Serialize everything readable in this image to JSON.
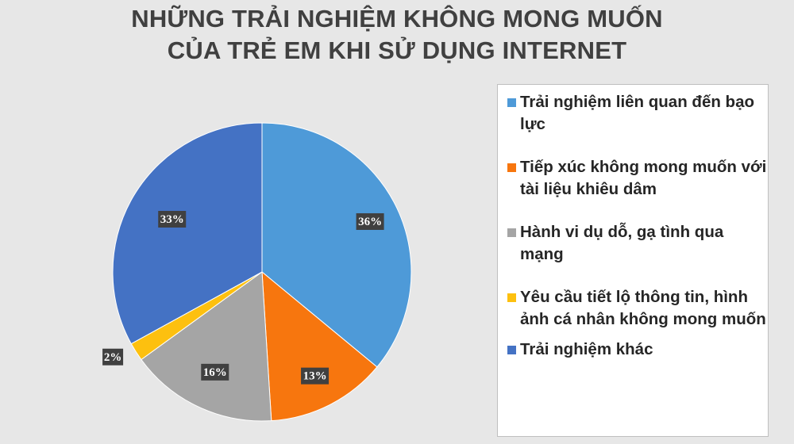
{
  "chart_data": {
    "type": "pie",
    "title_lines": [
      "NHỮNG TRẢI NGHIỆM KHÔNG MONG MUỐN",
      "CỦA TRẺ EM KHI SỬ DỤNG INTERNET"
    ],
    "legend_position": "right",
    "slices": [
      {
        "label": "Trải nghiệm liên quan đến bạo lực",
        "value": 36,
        "value_label": "36%",
        "color": "#4e9ad8"
      },
      {
        "label": "Tiếp xúc không mong muốn với tài liệu khiêu dâm",
        "value": 13,
        "value_label": "13%",
        "color": "#f7760e"
      },
      {
        "label": "Hành vi dụ dỗ, gạ tình qua mạng",
        "value": 16,
        "value_label": "16%",
        "color": "#a5a5a5"
      },
      {
        "label": "Yêu cầu tiết lộ thông tin, hình ảnh cá nhân không mong muốn",
        "value": 2,
        "value_label": "2%",
        "color": "#fdc00f"
      },
      {
        "label": "Trải nghiệm khác",
        "value": 33,
        "value_label": "33%",
        "color": "#4472c4"
      }
    ]
  }
}
